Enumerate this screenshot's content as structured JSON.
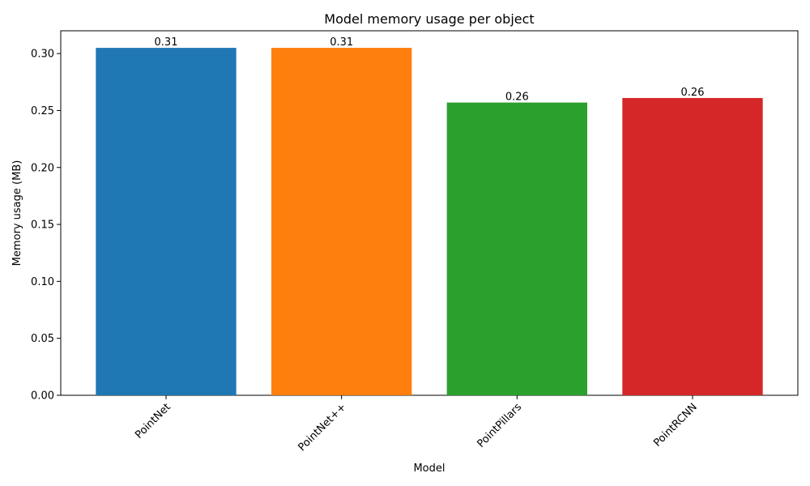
{
  "chart_data": {
    "type": "bar",
    "title": "Model memory usage per object",
    "xlabel": "Model",
    "ylabel": "Memory usage (MB)",
    "categories": [
      "PointNet",
      "PointNet++",
      "PointPillars",
      "PointRCNN"
    ],
    "values": [
      0.305,
      0.305,
      0.257,
      0.261
    ],
    "data_labels": [
      "0.31",
      "0.31",
      "0.26",
      "0.26"
    ],
    "colors": [
      "#1f77b4",
      "#ff7f0e",
      "#2ca02c",
      "#d62728"
    ],
    "ylim": [
      0,
      0.32
    ],
    "yticks": [
      "0.00",
      "0.05",
      "0.10",
      "0.15",
      "0.20",
      "0.25",
      "0.30"
    ],
    "ytick_values": [
      0,
      0.05,
      0.1,
      0.15,
      0.2,
      0.25,
      0.3
    ],
    "xtick_rotation": 45,
    "grid": false,
    "legend": "none"
  }
}
